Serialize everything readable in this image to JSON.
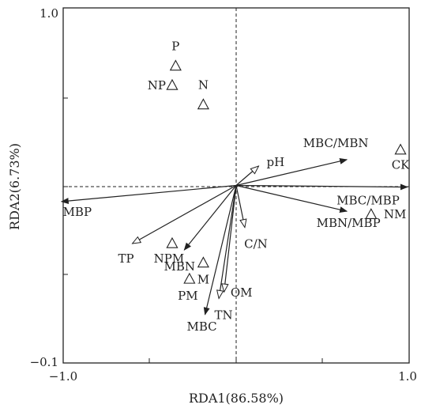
{
  "chart_data": {
    "type": "scatter",
    "title": "",
    "xlabel": "RDA1(86.58%)",
    "ylabel": "RDA2(6.73%)",
    "xlim": [
      -1.0,
      1.0
    ],
    "ylim": [
      -0.1,
      1.0
    ],
    "x_ticks": [
      {
        "value": -1.0,
        "label": "−1.0"
      },
      {
        "value": 1.0,
        "label": "1.0"
      }
    ],
    "y_ticks": [
      {
        "value": 1.0,
        "label": "1.0"
      },
      {
        "value": -0.1,
        "label": "−0.1"
      }
    ],
    "origin": {
      "x": 0.0,
      "y": 0.45
    },
    "samples": [
      {
        "label": "P",
        "x": -0.35,
        "y": 0.82
      },
      {
        "label": "NP",
        "x": -0.37,
        "y": 0.76
      },
      {
        "label": "N",
        "x": -0.19,
        "y": 0.7
      },
      {
        "label": "CK",
        "x": 0.95,
        "y": 0.56
      },
      {
        "label": "NM",
        "x": 0.78,
        "y": 0.36
      },
      {
        "label": "NPM",
        "x": -0.37,
        "y": 0.27
      },
      {
        "label": "M",
        "x": -0.19,
        "y": 0.21
      },
      {
        "label": "PM",
        "x": -0.27,
        "y": 0.16
      }
    ],
    "vectors": [
      {
        "label": "pH",
        "x": 0.13,
        "y": 0.51,
        "head": "open"
      },
      {
        "label": "MBC/MBN",
        "x": 0.64,
        "y": 0.53,
        "head": "filled"
      },
      {
        "label": "MBC/MBP",
        "x": 0.99,
        "y": 0.445,
        "head": "filled"
      },
      {
        "label": "MBN/MBP",
        "x": 0.64,
        "y": 0.37,
        "head": "filled"
      },
      {
        "label": "C/N",
        "x": 0.05,
        "y": 0.32,
        "head": "open"
      },
      {
        "label": "MBP",
        "x": -1.01,
        "y": 0.4,
        "head": "filled"
      },
      {
        "label": "TP",
        "x": -0.6,
        "y": 0.27,
        "head": "open"
      },
      {
        "label": "MBN",
        "x": -0.3,
        "y": 0.25,
        "head": "filled"
      },
      {
        "label": "OM",
        "x": -0.07,
        "y": 0.12,
        "head": "open"
      },
      {
        "label": "TN",
        "x": -0.1,
        "y": 0.1,
        "head": "open"
      },
      {
        "label": "MBC",
        "x": -0.18,
        "y": 0.05,
        "head": "filled"
      }
    ]
  }
}
